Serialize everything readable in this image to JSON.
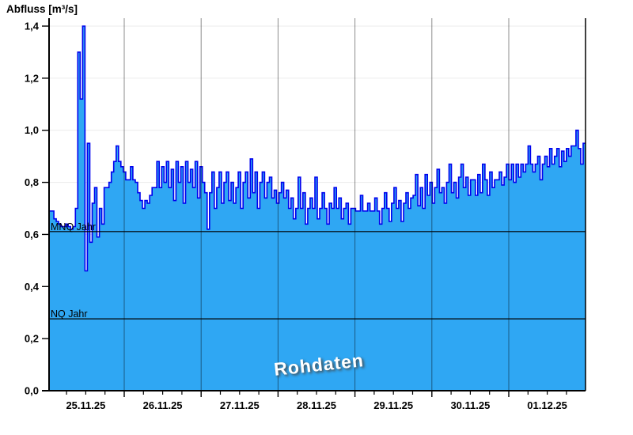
{
  "chart_data": {
    "type": "area",
    "title": "Abfluss [m³/s]",
    "watermark": "Rohdaten",
    "xlabel": "",
    "ylabel": "Abfluss [m³/s]",
    "ylim": [
      0.0,
      1.4
    ],
    "y_tick_values": [
      0.0,
      0.2,
      0.4,
      0.6,
      0.8,
      1.0,
      1.2,
      1.4
    ],
    "y_tick_labels": [
      "0,0",
      "0,2",
      "0,4",
      "0,6",
      "0,8",
      "1,0",
      "1,2",
      "1,4"
    ],
    "x_tick_labels": [
      "25.11.25",
      "26.11.25",
      "27.11.25",
      "28.11.25",
      "29.11.25",
      "30.11.25",
      "01.12.25"
    ],
    "x_days": 7,
    "minor_ticks_per_day": 4,
    "grid": true,
    "legend_position": "none",
    "reference_lines": [
      {
        "label": "MNQ Jahr",
        "value": 0.611
      },
      {
        "label": "NQ Jahr",
        "value": 0.276
      }
    ],
    "series": [
      {
        "name": "Rohdaten",
        "step": true,
        "values": [
          0.69,
          0.69,
          0.66,
          0.65,
          0.64,
          0.63,
          0.63,
          0.64,
          0.63,
          0.62,
          0.63,
          0.7,
          1.3,
          1.12,
          1.4,
          0.46,
          0.95,
          0.57,
          0.72,
          0.78,
          0.59,
          0.7,
          0.64,
          0.78,
          0.78,
          0.8,
          0.84,
          0.88,
          0.94,
          0.88,
          0.86,
          0.84,
          0.81,
          0.81,
          0.86,
          0.81,
          0.8,
          0.76,
          0.73,
          0.7,
          0.73,
          0.72,
          0.75,
          0.78,
          0.78,
          0.88,
          0.78,
          0.86,
          0.8,
          0.88,
          0.78,
          0.85,
          0.73,
          0.88,
          0.8,
          0.86,
          0.72,
          0.88,
          0.8,
          0.85,
          0.78,
          0.88,
          0.74,
          0.86,
          0.8,
          0.76,
          0.62,
          0.76,
          0.84,
          0.7,
          0.78,
          0.84,
          0.72,
          0.8,
          0.84,
          0.73,
          0.8,
          0.72,
          0.78,
          0.84,
          0.7,
          0.8,
          0.84,
          0.74,
          0.89,
          0.76,
          0.84,
          0.7,
          0.8,
          0.84,
          0.74,
          0.8,
          0.82,
          0.74,
          0.77,
          0.72,
          0.76,
          0.8,
          0.74,
          0.77,
          0.7,
          0.74,
          0.66,
          0.7,
          0.82,
          0.7,
          0.76,
          0.64,
          0.7,
          0.74,
          0.7,
          0.82,
          0.66,
          0.7,
          0.76,
          0.7,
          0.64,
          0.72,
          0.7,
          0.78,
          0.7,
          0.74,
          0.66,
          0.7,
          0.72,
          0.64,
          0.7,
          0.7,
          0.69,
          0.69,
          0.75,
          0.69,
          0.69,
          0.72,
          0.69,
          0.69,
          0.74,
          0.69,
          0.64,
          0.7,
          0.76,
          0.7,
          0.65,
          0.72,
          0.78,
          0.7,
          0.73,
          0.65,
          0.72,
          0.76,
          0.7,
          0.74,
          0.75,
          0.83,
          0.71,
          0.78,
          0.7,
          0.83,
          0.75,
          0.8,
          0.72,
          0.78,
          0.85,
          0.76,
          0.78,
          0.72,
          0.8,
          0.87,
          0.76,
          0.8,
          0.74,
          0.82,
          0.87,
          0.78,
          0.82,
          0.75,
          0.81,
          0.81,
          0.75,
          0.83,
          0.76,
          0.87,
          0.81,
          0.75,
          0.84,
          0.78,
          0.81,
          0.81,
          0.84,
          0.79,
          0.82,
          0.87,
          0.81,
          0.87,
          0.8,
          0.87,
          0.82,
          0.87,
          0.84,
          0.87,
          0.94,
          0.87,
          0.84,
          0.87,
          0.9,
          0.81,
          0.87,
          0.9,
          0.86,
          0.93,
          0.87,
          0.9,
          0.93,
          0.86,
          0.92,
          0.88,
          0.93,
          0.9,
          0.94,
          0.94,
          1.0,
          0.93,
          0.87,
          0.95
        ]
      }
    ],
    "colors": {
      "fill": "#2fa7f3",
      "line": "#0000ee",
      "vertical_grid": "rgba(0,0,0,0.45)",
      "horizontal_grid": "#ebebeb",
      "axis": "#000000",
      "text": "#000000",
      "watermark_text": "#ffffff"
    }
  }
}
